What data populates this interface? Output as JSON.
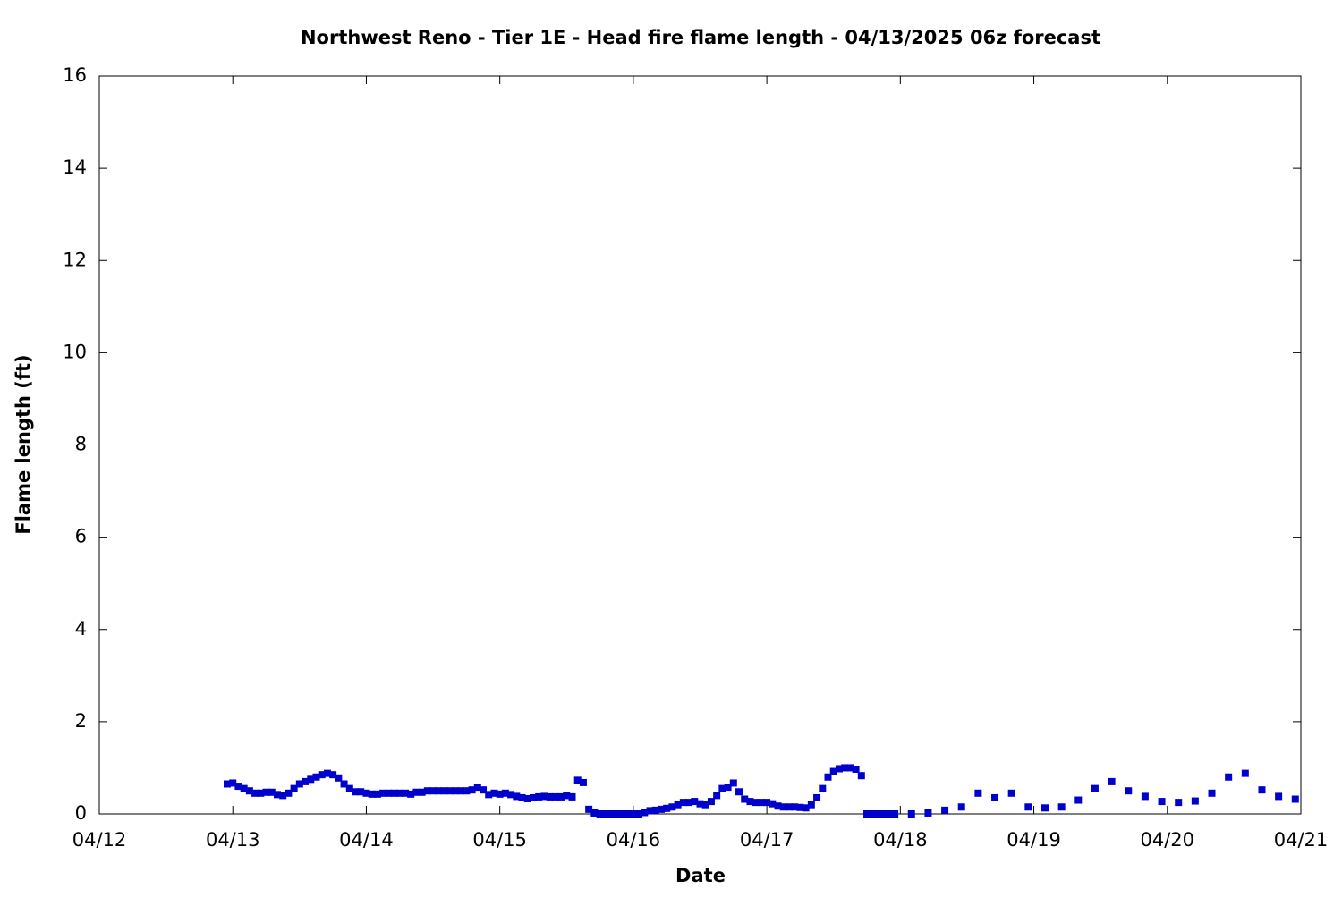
{
  "chart_data": {
    "type": "scatter",
    "title": "Northwest Reno - Tier 1E - Head fire flame length - 04/13/2025 06z forecast",
    "x_label": "Date",
    "y_label": "Flame length (ft)",
    "color": "#0000cc",
    "xlim": [
      0,
      216
    ],
    "xticks": [
      {
        "value": 0,
        "label": "04/12"
      },
      {
        "value": 24,
        "label": "04/13"
      },
      {
        "value": 48,
        "label": "04/14"
      },
      {
        "value": 72,
        "label": "04/15"
      },
      {
        "value": 96,
        "label": "04/16"
      },
      {
        "value": 120,
        "label": "04/17"
      },
      {
        "value": 144,
        "label": "04/18"
      },
      {
        "value": 168,
        "label": "04/19"
      },
      {
        "value": 192,
        "label": "04/20"
      },
      {
        "value": 216,
        "label": "04/21"
      }
    ],
    "ylim": [
      0,
      16
    ],
    "yticks": [
      0,
      2,
      4,
      6,
      8,
      10,
      12,
      14,
      16
    ],
    "x": [
      23,
      24,
      25,
      26,
      27,
      28,
      29,
      30,
      31,
      32,
      33,
      34,
      35,
      36,
      37,
      38,
      39,
      40,
      41,
      42,
      43,
      44,
      45,
      46,
      47,
      48,
      49,
      50,
      51,
      52,
      53,
      54,
      55,
      56,
      57,
      58,
      59,
      60,
      61,
      62,
      63,
      64,
      65,
      66,
      67,
      68,
      69,
      70,
      71,
      72,
      73,
      74,
      75,
      76,
      77,
      78,
      79,
      80,
      81,
      82,
      83,
      84,
      85,
      86,
      87,
      88,
      89,
      90,
      91,
      92,
      93,
      94,
      95,
      96,
      97,
      98,
      99,
      100,
      101,
      102,
      103,
      104,
      105,
      106,
      107,
      108,
      109,
      110,
      111,
      112,
      113,
      114,
      115,
      116,
      117,
      118,
      119,
      120,
      121,
      122,
      123,
      124,
      125,
      126,
      127,
      128,
      129,
      130,
      131,
      132,
      133,
      134,
      135,
      136,
      137,
      138,
      139,
      140,
      141,
      142,
      143,
      146,
      149,
      152,
      155,
      158,
      161,
      164,
      167,
      170,
      173,
      176,
      179,
      182,
      185,
      188,
      191,
      194,
      197,
      200,
      203,
      206,
      209,
      212,
      215
    ],
    "values": [
      0.65,
      0.67,
      0.6,
      0.55,
      0.5,
      0.45,
      0.45,
      0.47,
      0.47,
      0.42,
      0.4,
      0.45,
      0.55,
      0.65,
      0.7,
      0.75,
      0.8,
      0.85,
      0.88,
      0.85,
      0.78,
      0.65,
      0.55,
      0.48,
      0.48,
      0.45,
      0.43,
      0.43,
      0.45,
      0.45,
      0.45,
      0.45,
      0.45,
      0.43,
      0.47,
      0.47,
      0.5,
      0.5,
      0.5,
      0.5,
      0.5,
      0.5,
      0.5,
      0.5,
      0.52,
      0.58,
      0.52,
      0.42,
      0.45,
      0.43,
      0.45,
      0.42,
      0.38,
      0.35,
      0.33,
      0.35,
      0.37,
      0.38,
      0.37,
      0.37,
      0.37,
      0.4,
      0.37,
      0.73,
      0.68,
      0.1,
      0.02,
      0,
      0,
      0,
      0,
      0,
      0,
      0,
      0,
      0.03,
      0.07,
      0.08,
      0.1,
      0.12,
      0.15,
      0.2,
      0.25,
      0.25,
      0.27,
      0.22,
      0.2,
      0.27,
      0.4,
      0.55,
      0.58,
      0.67,
      0.48,
      0.32,
      0.27,
      0.25,
      0.25,
      0.25,
      0.22,
      0.17,
      0.15,
      0.15,
      0.15,
      0.14,
      0.13,
      0.2,
      0.35,
      0.55,
      0.8,
      0.92,
      0.98,
      1,
      1,
      0.97,
      0.83,
      0,
      0,
      0,
      0,
      0,
      0,
      0,
      0.02,
      0.08,
      0.15,
      0.45,
      0.35,
      0.45,
      0.15,
      0.13,
      0.15,
      0.3,
      0.55,
      0.7,
      0.5,
      0.38,
      0.27,
      0.25,
      0.28,
      0.45,
      0.8,
      0.88,
      0.52,
      0.38,
      0.32
    ]
  }
}
